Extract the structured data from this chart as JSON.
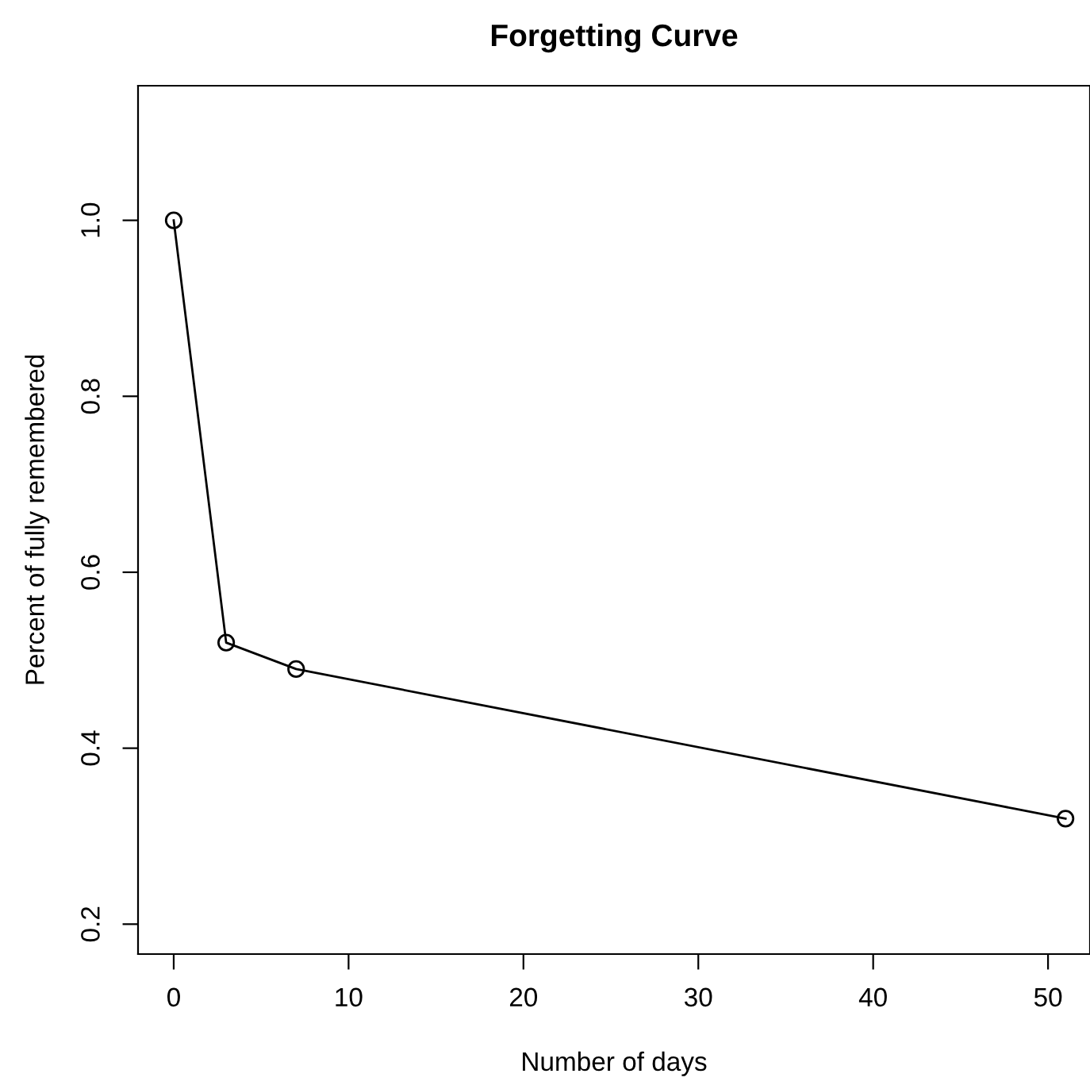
{
  "chart_data": {
    "type": "line",
    "title": "Forgetting Curve",
    "xlabel": "Number of days",
    "ylabel": "Percent of fully remembered",
    "x": [
      0,
      3,
      7,
      51
    ],
    "series": [
      {
        "color": "#000000",
        "values": [
          1.0,
          0.52,
          0.49,
          0.32
        ]
      }
    ],
    "xlim": [
      -2.04,
      52.4
    ],
    "ylim": [
      0.166,
      1.153
    ],
    "xticks": [
      0,
      10,
      20,
      30,
      40,
      50
    ],
    "yticks": [
      0.2,
      0.4,
      0.6,
      0.8,
      {
        "value": 1,
        "label": "1.0"
      }
    ],
    "marker": "circle",
    "line_style": "solid",
    "grid": false,
    "legend": false
  }
}
